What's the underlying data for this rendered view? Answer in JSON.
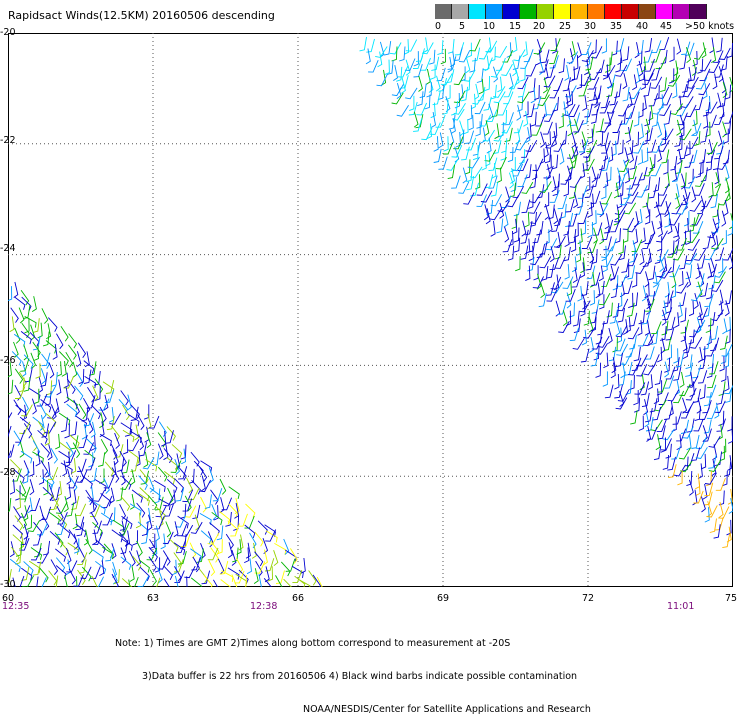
{
  "title": "Rapidsact Winds(12.5KM) 20160506 descending",
  "legend": {
    "labels": [
      "0",
      "5",
      "10",
      "15",
      "20",
      "25",
      "30",
      "35",
      "40",
      "45",
      ">50 knots"
    ],
    "colors": [
      "#6b6b6b",
      "#a8a8a8",
      "#00e5ff",
      "#0096ff",
      "#0000d0",
      "#00b400",
      "#96d200",
      "#ffff00",
      "#ffb400",
      "#ff7800",
      "#ff0000",
      "#c80000",
      "#8b4513",
      "#ff00ff",
      "#b400b4",
      "#50005a"
    ]
  },
  "map": {
    "lon_range": [
      60,
      75
    ],
    "lat_range": [
      -30,
      -20
    ],
    "lat_ticks": [
      "-20",
      "-22",
      "-24",
      "-26",
      "-28",
      "-30"
    ],
    "lon_ticks": [
      "60",
      "63",
      "66",
      "69",
      "72",
      "75"
    ],
    "time_labels": [
      "12:35",
      "12:38",
      "11:01"
    ],
    "grid": true
  },
  "notes": [
    "Note: 1) Times are GMT 2)Times along bottom correspond to measurement at -20S",
    "3)Data buffer is 22 hrs from 20160506 4) Black wind barbs indicate possible contamination",
    "NOAA/NESDIS/Center for Satellite Applications and Research"
  ]
}
